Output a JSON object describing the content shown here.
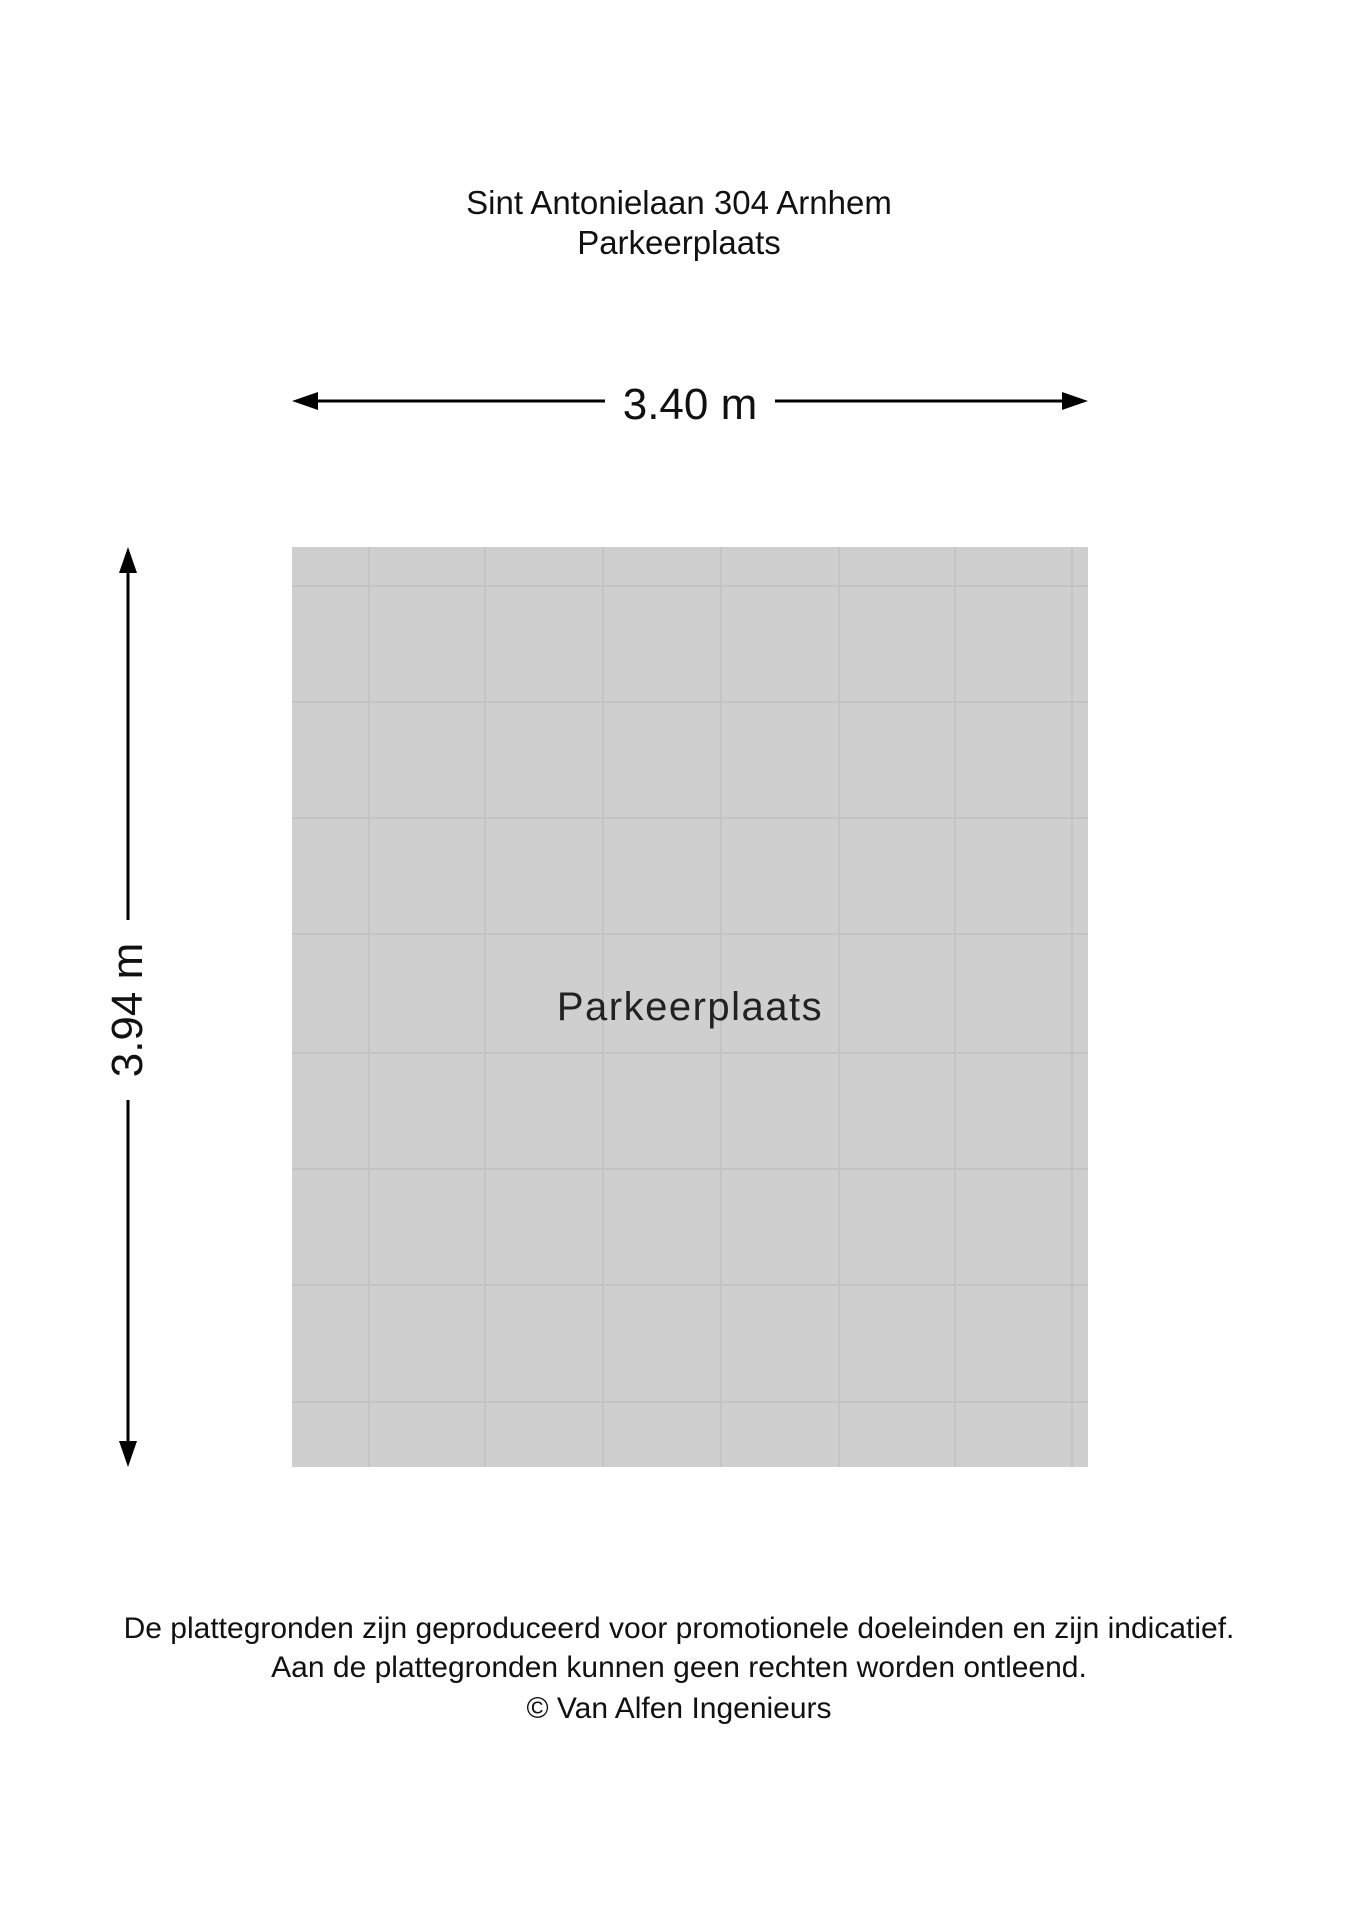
{
  "header": {
    "address": "Sint Antonielaan 304 Arnhem",
    "floor": "Parkeerplaats"
  },
  "dimensions": {
    "width": "3.40 m",
    "height": "3.94 m"
  },
  "room": {
    "label": "Parkeerplaats",
    "fill_color": "#cfcfcf"
  },
  "footer": {
    "line1": "De plattegronden zijn geproduceerd voor promotionele doeleinden en zijn indicatief.",
    "line2": "Aan de plattegronden kunnen geen rechten worden ontleend.",
    "line3": "© Van Alfen Ingenieurs"
  }
}
